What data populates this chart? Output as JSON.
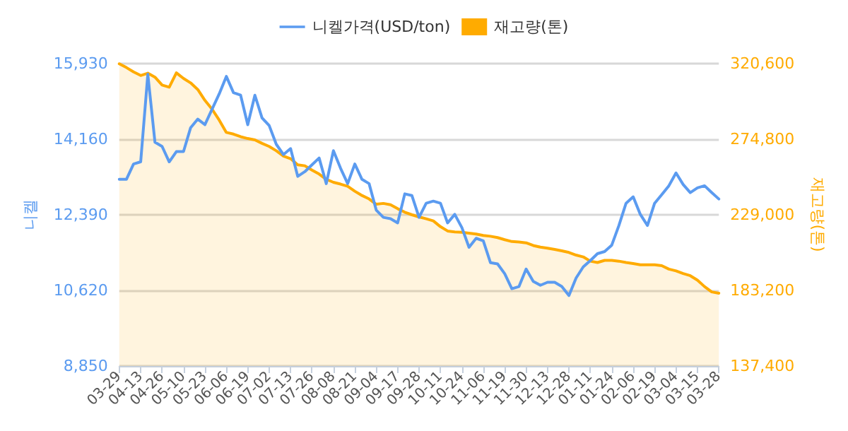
{
  "chart_data": {
    "type": "line",
    "ylabel": "니켈",
    "y2label": "재고량(톤)",
    "categories": [
      "03-29",
      null,
      null,
      "04-13",
      null,
      null,
      "04-26",
      null,
      null,
      "05-10",
      null,
      null,
      "05-23",
      null,
      null,
      "06-06",
      null,
      null,
      "06-19",
      null,
      null,
      "07-02",
      null,
      null,
      "07-13",
      null,
      null,
      "07-26",
      null,
      null,
      "08-08",
      null,
      null,
      "08-21",
      null,
      null,
      "09-04",
      null,
      null,
      "09-17",
      null,
      null,
      "09-28",
      null,
      null,
      "10-11",
      null,
      null,
      "10-24",
      null,
      null,
      "11-06",
      null,
      null,
      "11-19",
      null,
      null,
      "11-30",
      null,
      null,
      "12-13",
      null,
      null,
      "12-28",
      null,
      null,
      "01-11",
      null,
      null,
      "01-24",
      null,
      null,
      "02-06",
      null,
      null,
      "02-19",
      null,
      null,
      "03-04",
      null,
      null,
      "03-15",
      null,
      null,
      "03-28"
    ],
    "series": [
      {
        "name": "니켈가격(USD/ton)",
        "color": "#5b9bf0",
        "values": [
          13220,
          13220,
          13580,
          13630,
          15680,
          14090,
          13990,
          13630,
          13870,
          13870,
          14430,
          14630,
          14500,
          14860,
          15220,
          15630,
          15250,
          15190,
          14500,
          15190,
          14660,
          14480,
          14040,
          13800,
          13940,
          13290,
          13400,
          13560,
          13720,
          13120,
          13890,
          13480,
          13120,
          13580,
          13220,
          13120,
          12500,
          12330,
          12300,
          12200,
          12880,
          12840,
          12330,
          12660,
          12710,
          12660,
          12200,
          12400,
          12090,
          11630,
          11840,
          11780,
          11270,
          11240,
          11010,
          10660,
          10710,
          11120,
          10830,
          10740,
          10810,
          10810,
          10710,
          10500,
          10910,
          11170,
          11320,
          11480,
          11530,
          11680,
          12140,
          12660,
          12810,
          12400,
          12140,
          12660,
          12860,
          13070,
          13370,
          13100,
          12910,
          13020,
          13070,
          12910,
          12760
        ]
      },
      {
        "name": "재고량(톤)",
        "type": "area",
        "axis": "y2",
        "color": "#ffab00",
        "values": [
          320500,
          318200,
          315600,
          313400,
          314800,
          312400,
          307600,
          306300,
          315000,
          311600,
          308900,
          304900,
          298300,
          293000,
          286400,
          278900,
          277900,
          276300,
          275200,
          274400,
          272300,
          270400,
          267800,
          264600,
          263000,
          259300,
          258700,
          256100,
          253700,
          250500,
          248700,
          247600,
          246300,
          243300,
          240700,
          238600,
          235400,
          235900,
          235100,
          232700,
          230600,
          229000,
          227700,
          226600,
          225300,
          221800,
          219200,
          218600,
          218400,
          217900,
          217300,
          216500,
          216000,
          215200,
          213900,
          212800,
          212500,
          212000,
          210400,
          209400,
          208800,
          208000,
          207200,
          206200,
          204600,
          203500,
          200900,
          200100,
          201400,
          201400,
          200900,
          200100,
          199500,
          198700,
          198700,
          198700,
          198200,
          196100,
          195000,
          193400,
          192100,
          189400,
          185500,
          182300,
          181500
        ]
      }
    ],
    "ylim": [
      8850,
      15930
    ],
    "yticks": [
      {
        "value": 8850,
        "label": "8,850"
      },
      {
        "value": 10620,
        "label": "10,620"
      },
      {
        "value": 12390,
        "label": "12,390"
      },
      {
        "value": 14160,
        "label": "14,160"
      },
      {
        "value": 15930,
        "label": "15,930"
      }
    ],
    "y2lim": [
      137400,
      320600
    ],
    "y2ticks": [
      {
        "value": 137400,
        "label": "137,400"
      },
      {
        "value": 183200,
        "label": "183,200"
      },
      {
        "value": 229000,
        "label": "229,000"
      },
      {
        "value": 274800,
        "label": "274,800"
      },
      {
        "value": 320600,
        "label": "320,600"
      }
    ],
    "grid": "y",
    "legend": "top",
    "marker": "none",
    "line_style": "solid"
  }
}
